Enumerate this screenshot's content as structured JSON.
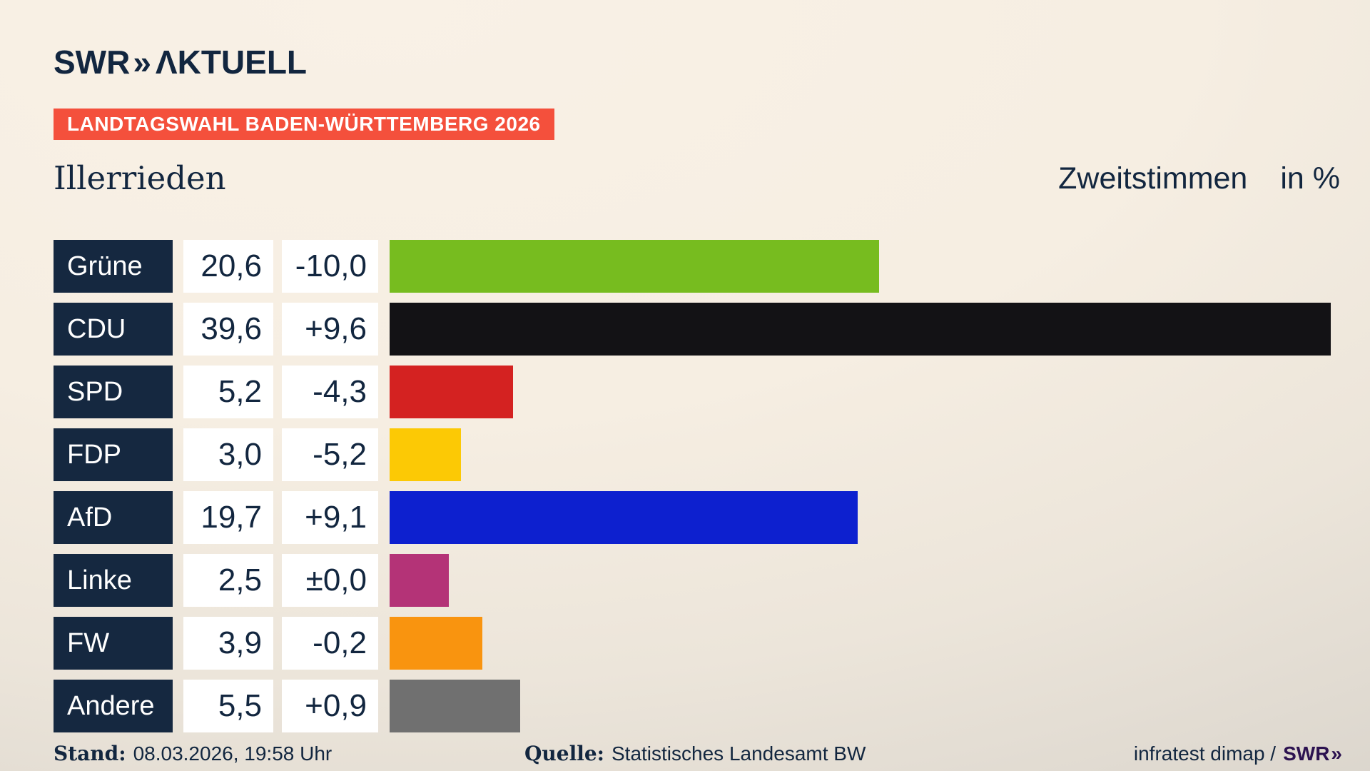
{
  "header": {
    "logo_swr": "SWR",
    "logo_chevrons": "»",
    "logo_aktuell": "ΛKTUELL",
    "banner": "LANDTAGSWAHL BADEN-WÜRTTEMBERG 2026"
  },
  "title": {
    "municipality": "Illerrieden",
    "measure": "Zweitstimmen",
    "unit": "in %"
  },
  "chart_data": {
    "type": "bar",
    "orientation": "horizontal",
    "title": "Illerrieden — Zweitstimmen in %",
    "xlim": [
      0,
      40
    ],
    "grid": false,
    "legend": false,
    "categories": [
      "Grüne",
      "CDU",
      "SPD",
      "FDP",
      "AfD",
      "Linke",
      "FW",
      "Andere"
    ],
    "values": [
      20.6,
      39.6,
      5.2,
      3.0,
      19.7,
      2.5,
      3.9,
      5.5
    ],
    "value_labels": [
      "20,6",
      "39,6",
      "5,2",
      "3,0",
      "19,7",
      "2,5",
      "3,9",
      "5,5"
    ],
    "change_labels": [
      "-10,0",
      "+9,6",
      "-4,3",
      "-5,2",
      "+9,1",
      "±0,0",
      "-0,2",
      "+0,9"
    ],
    "bar_colors": [
      "#77bc1f",
      "#131215",
      "#d42221",
      "#fcc905",
      "#0d20cf",
      "#b43377",
      "#f9940f",
      "#707070"
    ]
  },
  "footer": {
    "stand_label": "Stand:",
    "stand_value": "08.03.2026, 19:58 Uhr",
    "quelle_label": "Quelle:",
    "quelle_value": "Statistisches Landesamt BW",
    "credit_text": "infratest dimap /",
    "credit_logo_swr": "SWR",
    "credit_logo_chevrons": "»"
  },
  "colors": {
    "background_top": "#f9f1e6",
    "background_bottom": "#d7d2ca",
    "navy": "#152840",
    "text": "#12263f",
    "banner_red": "#f4503c",
    "box_white": "#ffffff",
    "credit_logo_purple": "#2c1250"
  }
}
